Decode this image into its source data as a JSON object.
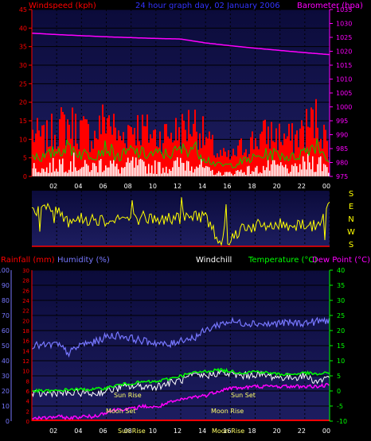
{
  "header": {
    "windspeed_label": "Windspeed (kph)",
    "title": "24 hour graph day, 02 January 2006",
    "barometer_label": "Barometer (hpa)"
  },
  "legend": {
    "rainfall": "Rainfall (mm)",
    "humidity": "Humidity (%)",
    "windchill": "Windchill",
    "temperature": "Temperature (°C)",
    "dew_point": "Dew Point (°C)"
  },
  "direction_labels": [
    "S",
    "E",
    "N",
    "W",
    "S"
  ],
  "annotations": {
    "sun_rise": "Sun Rise",
    "sun_set": "Sun Set",
    "moon_set": "Moon Set",
    "moon_rise": "Moon Rise",
    "sun_bottom_1": "Sun Rise",
    "sun_bottom_2": "Moon Rise"
  },
  "colors": {
    "background": "#000000",
    "plot_bg_top": "#0b0b3a",
    "plot_bg_bottom": "#1d1d60",
    "grid": "#000000",
    "wind_gust": "#ff0000",
    "wind_avg": "#00cc00",
    "wind_white": "#ffffff",
    "barometer": "#ff00ff",
    "direction": "#ffff00",
    "humidity": "#7777ff",
    "temperature": "#00ff00",
    "dew_point": "#ff00ff",
    "windchill": "#ffffff",
    "rainfall": "#ff0000",
    "axis_red": "#ff0000",
    "axis_magenta": "#ff00ff",
    "axis_yellow": "#ffff00",
    "axis_green": "#00ff00",
    "axis_blue": "#7777ff"
  },
  "chart_data": [
    {
      "type": "line",
      "title": "24 hour graph day, 02 January 2006",
      "x_ticks": [
        "02",
        "04",
        "06",
        "08",
        "10",
        "12",
        "14",
        "16",
        "18",
        "20",
        "22",
        "00"
      ],
      "x_range_hours": [
        0,
        24
      ],
      "left_axis": {
        "label": "Windspeed (kph)",
        "ylim": [
          0,
          45
        ],
        "ticks": [
          0,
          5,
          10,
          15,
          20,
          25,
          30,
          35,
          40,
          45
        ]
      },
      "right_axis": {
        "label": "Barometer (hpa)",
        "ylim": [
          975,
          1035
        ],
        "ticks": [
          975,
          980,
          985,
          990,
          995,
          1000,
          1005,
          1010,
          1015,
          1020,
          1025,
          1030,
          1035
        ]
      },
      "series": [
        {
          "name": "Barometer (hpa)",
          "axis": "right",
          "x": [
            0,
            2,
            4,
            6,
            8,
            10,
            12,
            14,
            16,
            18,
            20,
            22,
            24
          ],
          "values": [
            1026.5,
            1026,
            1025.6,
            1025.2,
            1024.9,
            1024.6,
            1024.4,
            1023,
            1022,
            1021.1,
            1020.3,
            1019.5,
            1018.8
          ]
        },
        {
          "axis": "left",
          "x": [
            0,
            1,
            2,
            3,
            4,
            5,
            6,
            7,
            8,
            9,
            10,
            11,
            12,
            13,
            14,
            15,
            16,
            17,
            18,
            19,
            20,
            21,
            22,
            23,
            24
          ],
          "values": [
            14,
            12,
            16,
            17,
            15,
            13,
            20,
            12,
            17,
            15,
            13,
            14,
            15,
            18,
            12,
            7,
            6,
            10,
            12,
            14,
            13,
            12,
            16,
            19,
            8
          ]
        },
        {
          "axis": "left",
          "x": [
            0,
            1,
            2,
            3,
            4,
            5,
            6,
            7,
            8,
            9,
            10,
            11,
            12,
            13,
            14,
            15,
            16,
            17,
            18,
            19,
            20,
            21,
            22,
            23,
            24
          ],
          "values": [
            6,
            5,
            7,
            8,
            6,
            6,
            8,
            5,
            7,
            6,
            6,
            6,
            7,
            8,
            5,
            3,
            3,
            4,
            5,
            6,
            6,
            5,
            7,
            9,
            4
          ]
        },
        {
          "axis": "left",
          "x": [
            0,
            1,
            2,
            3,
            4,
            5,
            6,
            7,
            8,
            9,
            10,
            11,
            12,
            13,
            14,
            15,
            16,
            17,
            18,
            19,
            20,
            21,
            22,
            23,
            24
          ],
          "values": [
            3,
            2,
            4,
            5,
            3,
            3,
            5,
            2,
            4,
            3,
            3,
            3,
            4,
            5,
            2,
            1,
            1,
            2,
            2,
            3,
            3,
            2,
            4,
            5,
            2
          ]
        }
      ]
    },
    {
      "type": "line",
      "y_categories": [
        "S",
        "E",
        "N",
        "W",
        "S"
      ],
      "x_ticks": [
        "02",
        "04",
        "06",
        "08",
        "10",
        "12",
        "14",
        "16",
        "18",
        "20",
        "22",
        "00"
      ],
      "series": [
        {
          "axis": "left",
          "x": [
            0,
            1,
            2,
            3,
            4,
            5,
            6,
            7,
            8,
            9,
            10,
            11,
            12,
            13,
            14,
            15,
            16,
            17,
            18,
            19,
            20,
            21,
            22,
            23,
            24
          ],
          "values": [
            230,
            240,
            235,
            180,
            175,
            180,
            170,
            185,
            175,
            190,
            170,
            180,
            185,
            195,
            200,
            40,
            40,
            130,
            130,
            130,
            140,
            140,
            150,
            120,
            330
          ]
        }
      ]
    },
    {
      "type": "line",
      "x_ticks": [
        "02",
        "04",
        "06",
        "08",
        "10",
        "12",
        "14",
        "16",
        "18",
        "20",
        "22",
        "00"
      ],
      "left_axis_outer": {
        "label": "Humidity (%)",
        "ylim": [
          0,
          100
        ],
        "ticks": [
          0,
          10,
          20,
          30,
          40,
          50,
          60,
          70,
          80,
          90,
          100
        ]
      },
      "left_axis_inner": {
        "label": "Rainfall (mm)",
        "ylim": [
          0,
          30
        ],
        "ticks": [
          0,
          2,
          4,
          6,
          8,
          10,
          12,
          14,
          16,
          18,
          20,
          22,
          24,
          26,
          28,
          30
        ]
      },
      "right_axis": {
        "label": "Temperature (°C)",
        "ylim": [
          -10,
          40
        ],
        "ticks": [
          -10,
          -5,
          0,
          5,
          10,
          15,
          20,
          25,
          30,
          35,
          40
        ]
      },
      "series": [
        {
          "name": "Humidity (%)",
          "axis": "left_outer",
          "x": [
            0,
            1,
            2,
            3,
            4,
            5,
            6,
            7,
            8,
            9,
            10,
            11,
            12,
            13,
            14,
            15,
            16,
            17,
            18,
            19,
            20,
            21,
            22,
            23,
            24
          ],
          "values": [
            50,
            50,
            51,
            45,
            51,
            52,
            56,
            57,
            55,
            53,
            52,
            50,
            54,
            55,
            60,
            64,
            66,
            65,
            65,
            64,
            65,
            65,
            65,
            66,
            67
          ]
        },
        {
          "name": "Temperature (°C)",
          "axis": "right",
          "x": [
            0,
            1,
            2,
            3,
            4,
            5,
            6,
            7,
            8,
            9,
            10,
            11,
            12,
            13,
            14,
            15,
            16,
            17,
            18,
            19,
            20,
            21,
            22,
            23,
            24
          ],
          "values": [
            0,
            0,
            0,
            0.5,
            0.5,
            0.5,
            1,
            2,
            2.5,
            3,
            3,
            4,
            5,
            6,
            6.5,
            7,
            6.5,
            6,
            6.5,
            6,
            5.5,
            5.5,
            6,
            5.5,
            6
          ]
        },
        {
          "name": "Windchill",
          "axis": "right",
          "x": [
            0,
            1,
            2,
            3,
            4,
            5,
            6,
            7,
            8,
            9,
            10,
            11,
            12,
            13,
            14,
            15,
            16,
            17,
            18,
            19,
            20,
            21,
            22,
            23,
            24
          ],
          "values": [
            -1,
            -1,
            -0.5,
            -1,
            -0.5,
            -1,
            0,
            1,
            1.5,
            1.5,
            1.5,
            2.5,
            3.5,
            5,
            5,
            6,
            5.5,
            5,
            5.5,
            5,
            4.5,
            4.5,
            5,
            3,
            5
          ]
        },
        {
          "name": "Dew Point (°C)",
          "axis": "right",
          "x": [
            0,
            1,
            2,
            3,
            4,
            5,
            6,
            7,
            8,
            9,
            10,
            11,
            12,
            13,
            14,
            15,
            16,
            17,
            18,
            19,
            20,
            21,
            22,
            23,
            24
          ],
          "values": [
            -9,
            -9,
            -8.5,
            -9,
            -8.5,
            -8.5,
            -7,
            -6,
            -6,
            -5,
            -5.5,
            -4,
            -3,
            -2,
            -1.5,
            0,
            1,
            1,
            1.5,
            1.5,
            1.5,
            1.5,
            1.5,
            1.5,
            2
          ]
        },
        {
          "name": "Rainfall (mm)",
          "axis": "left_inner",
          "x": [
            0,
            24
          ],
          "values": [
            0,
            0
          ]
        }
      ]
    }
  ]
}
